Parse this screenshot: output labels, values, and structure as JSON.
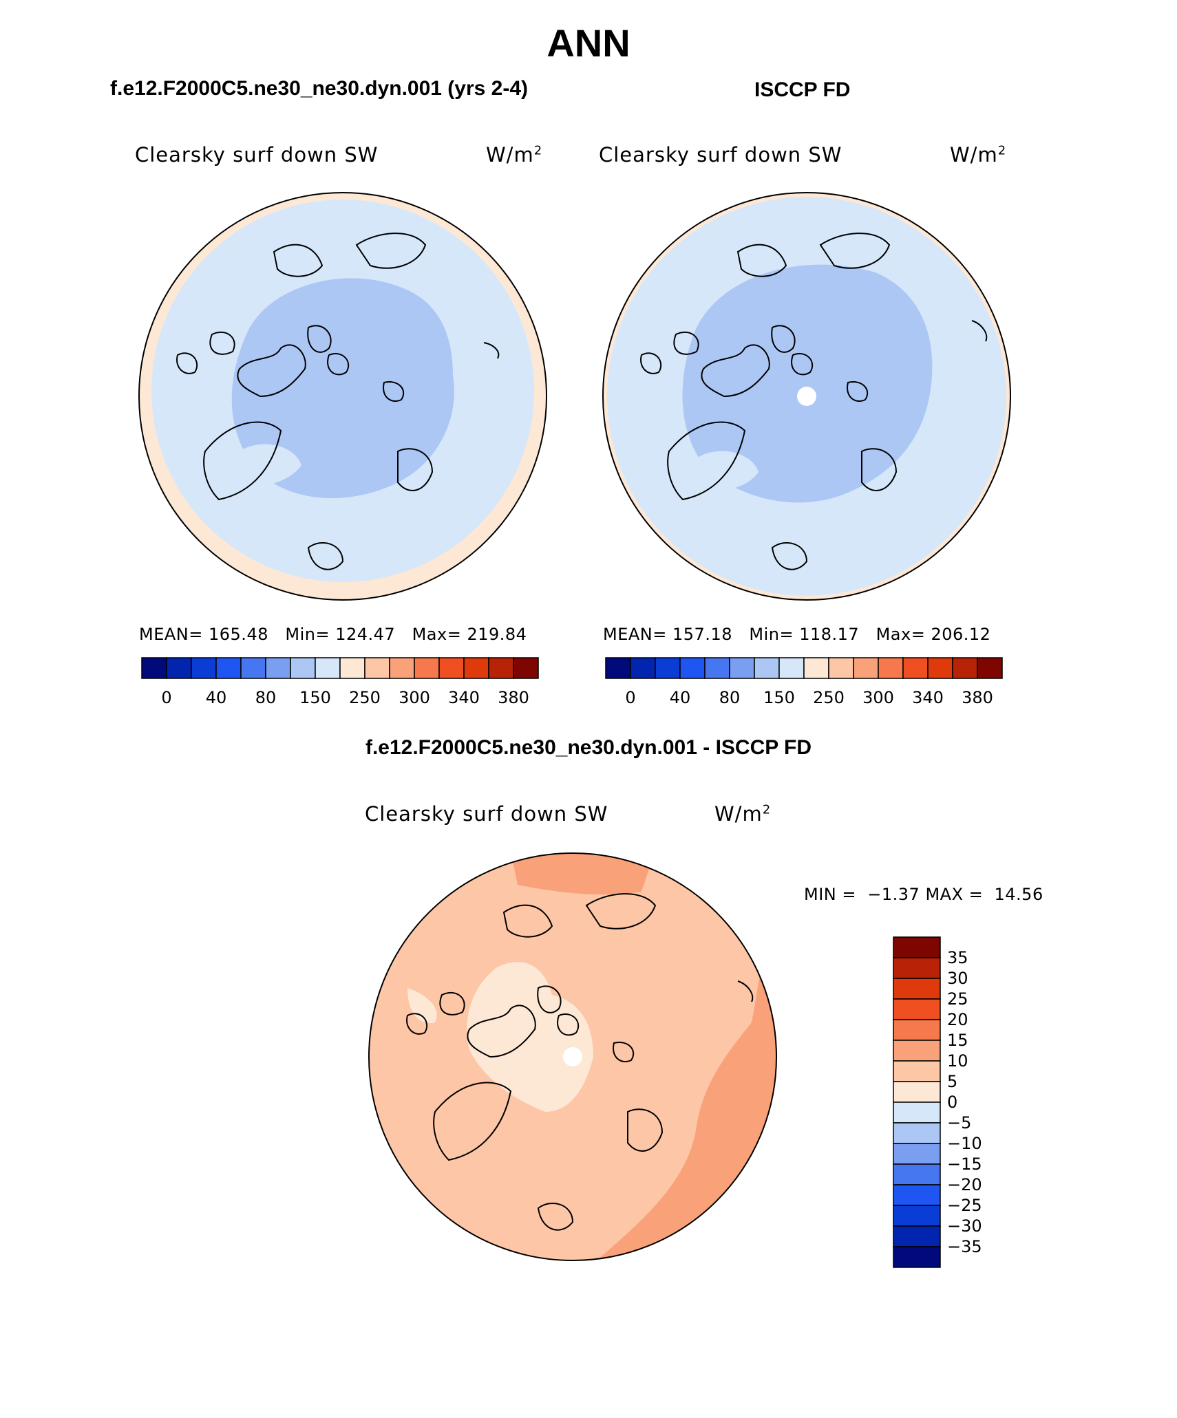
{
  "page_title": "ANN",
  "panels": [
    {
      "case_title": "f.e12.F2000C5.ne30_ne30.dyn.001 (yrs 2-4)",
      "field_label": "Clearsky surf down SW",
      "units_base": "W/m",
      "units_exp": "2",
      "stats": {
        "mean_label": "MEAN=",
        "mean": "165.48",
        "min_label": "Min=",
        "min": "124.47",
        "max_label": "Max=",
        "max": "219.84"
      }
    },
    {
      "case_title": "ISCCP FD",
      "field_label": "Clearsky surf down SW",
      "units_base": "W/m",
      "units_exp": "2",
      "stats": {
        "mean_label": "MEAN=",
        "mean": "157.18",
        "min_label": "Min=",
        "min": "118.17",
        "max_label": "Max=",
        "max": "206.12"
      }
    },
    {
      "case_title": "f.e12.F2000C5.ne30_ne30.dyn.001 - ISCCP FD",
      "field_label": "Clearsky surf down SW",
      "units_base": "W/m",
      "units_exp": "2",
      "stats": {
        "min_label": "MIN =",
        "min": "−1.37",
        "max_label": "MAX =",
        "max": "14.56"
      }
    }
  ],
  "colorbar_abs": {
    "colors": [
      "#000a7a",
      "#0225b0",
      "#0a3cd6",
      "#1f55f0",
      "#4676f0",
      "#7a9ef0",
      "#adc7f5",
      "#d6e7fa",
      "#fde8d6",
      "#fcc6a7",
      "#f9a179",
      "#f6784d",
      "#f04f22",
      "#de3a0c",
      "#b82308",
      "#7e0600"
    ],
    "labels": [
      "0",
      "40",
      "80",
      "150",
      "250",
      "300",
      "340",
      "380"
    ]
  },
  "colorbar_diff": {
    "colors": [
      "#7e0600",
      "#b82308",
      "#de3a0c",
      "#f04f22",
      "#f6784d",
      "#f9a179",
      "#fcc6a7",
      "#fde8d6",
      "#d6e7fa",
      "#adc7f5",
      "#7a9ef0",
      "#4676f0",
      "#1f55f0",
      "#0a3cd6",
      "#0225b0",
      "#000a7a"
    ],
    "labels": [
      "35",
      "30",
      "25",
      "20",
      "15",
      "10",
      "5",
      "0",
      "−5",
      "−10",
      "−15",
      "−20",
      "−25",
      "−30",
      "−35"
    ]
  },
  "map_colors": {
    "outer_ring": "#fde8d6",
    "mid": "#d6e7fa",
    "inner": "#adc7f5",
    "diff_base": "#fcc6a7",
    "diff_light": "#fde8d6",
    "diff_strong": "#f9a179"
  }
}
